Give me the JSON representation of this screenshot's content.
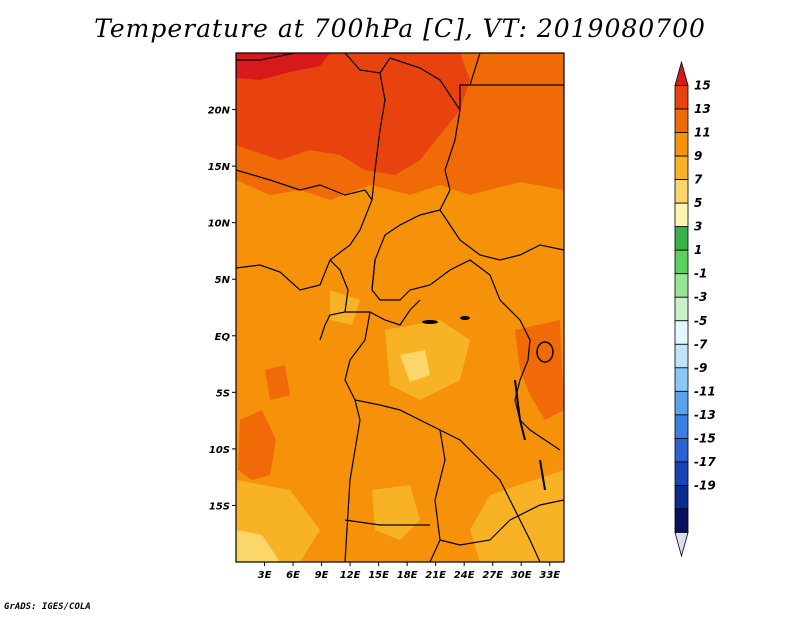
{
  "title": "Temperature at 700hPa [C], VT: 2019080700",
  "footer": "GrADS: IGES/COLA",
  "map": {
    "lat_labels": [
      "20N",
      "15N",
      "10N",
      "5N",
      "EQ",
      "5S",
      "10S",
      "15S"
    ],
    "lon_labels": [
      "3E",
      "6E",
      "9E",
      "12E",
      "15E",
      "18E",
      "21E",
      "24E",
      "27E",
      "30E",
      "33E"
    ],
    "lat_range": [
      -20,
      25
    ],
    "lon_range": [
      0,
      34.5
    ]
  },
  "colorbar": {
    "levels": [
      "15",
      "13",
      "11",
      "9",
      "7",
      "5",
      "3",
      "1",
      "-1",
      "-3",
      "-5",
      "-7",
      "-9",
      "-11",
      "-13",
      "-15",
      "-17",
      "-19"
    ],
    "colors": [
      "#d7191c",
      "#e8420f",
      "#f06a08",
      "#f5920a",
      "#f8b225",
      "#fbd66a",
      "#fff3b0",
      "#37b34a",
      "#5cd05c",
      "#96e696",
      "#c9f0c9",
      "#e4f6ff",
      "#bfe3fb",
      "#8cc6f5",
      "#5aa3ef",
      "#3a7fe3",
      "#2a62d0",
      "#1a44b5",
      "#0d2a8f",
      "#0a1160",
      "#dcdcf5"
    ]
  },
  "fill_colors": {
    "warmest": "#e8420f",
    "warm": "#f06a08",
    "mid": "#f5920a",
    "cool": "#f8b225",
    "coolest": "#fbd66a",
    "palest": "#fff3b0"
  }
}
